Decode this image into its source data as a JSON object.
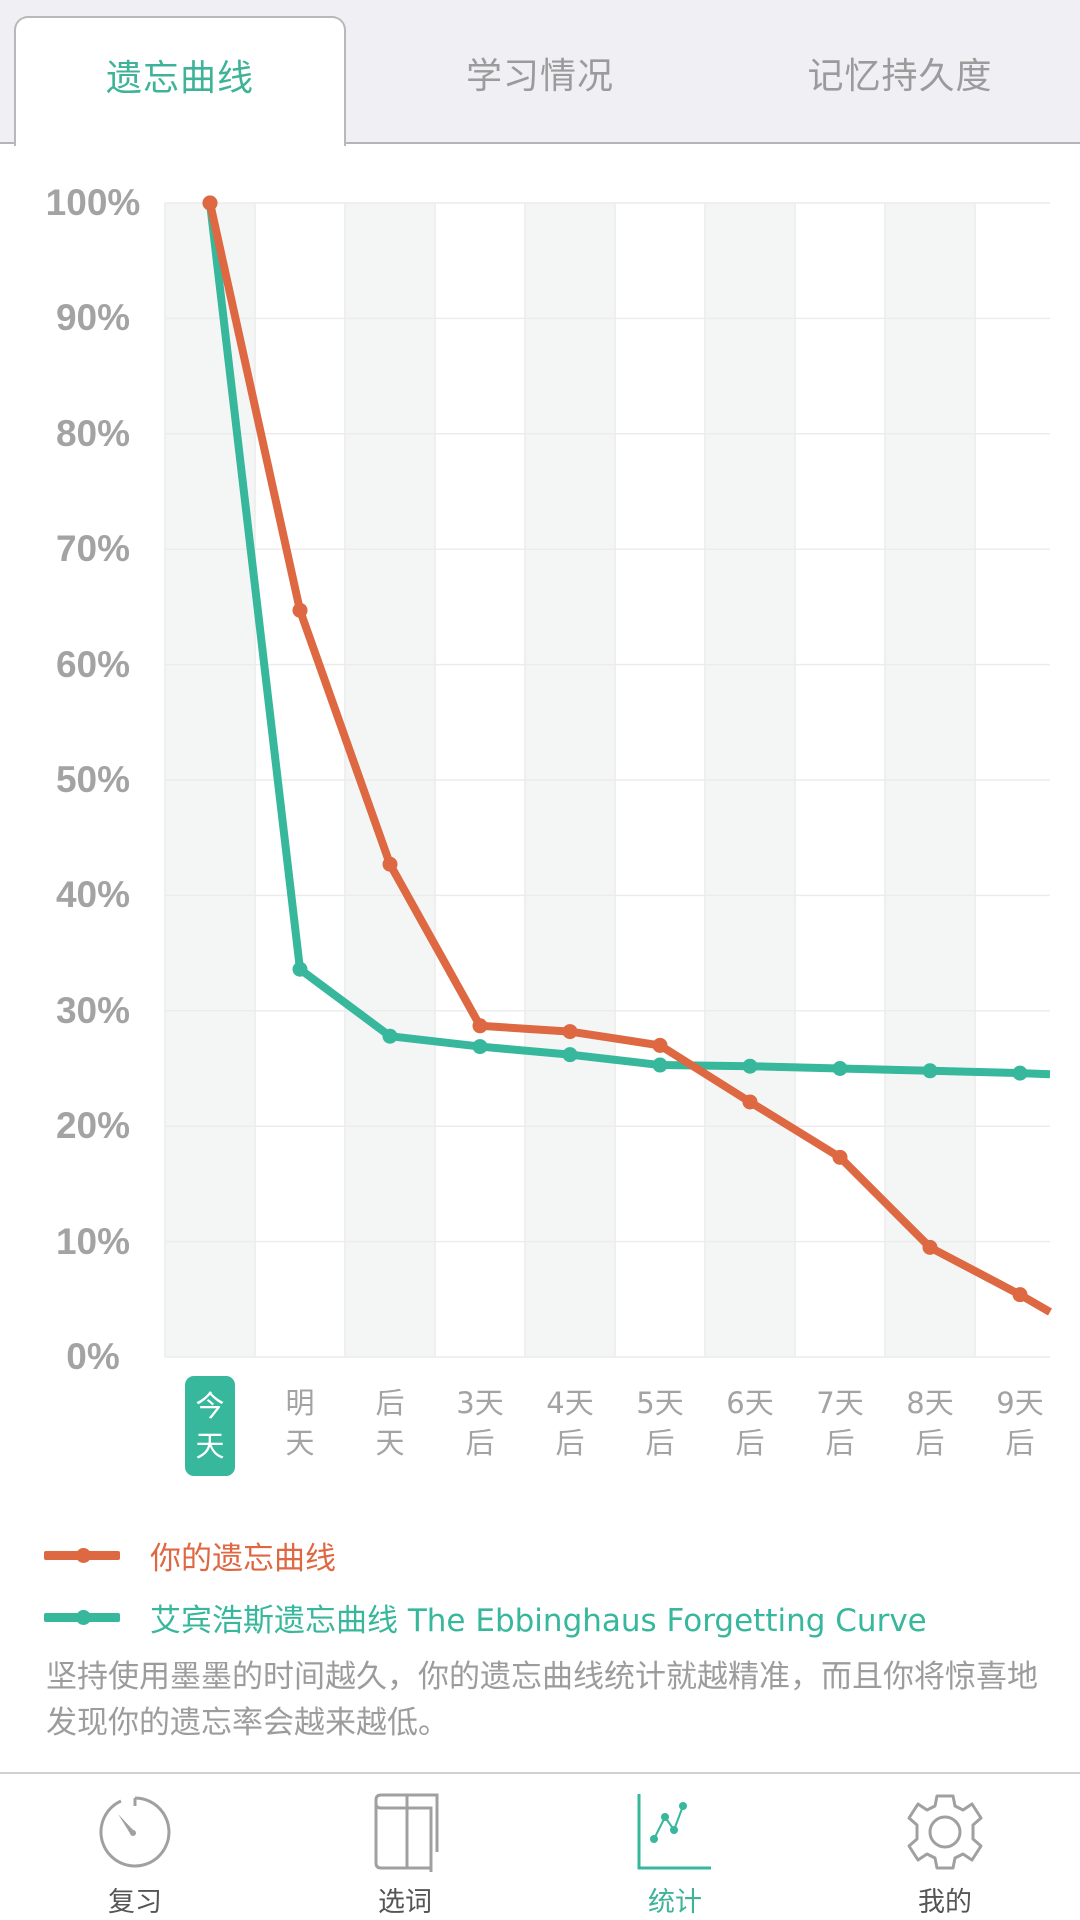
{
  "header": {
    "tabs": [
      {
        "label": "遗忘曲线",
        "active": true
      },
      {
        "label": "学习情况",
        "active": false
      },
      {
        "label": "记忆持久度",
        "active": false
      }
    ]
  },
  "colors": {
    "accent": "#37b79b",
    "orange": "#dd6841",
    "teal": "#37b79b",
    "axis_text": "#a3a3a3",
    "band": "#f4f6f6",
    "grid": "#ececec"
  },
  "chart_data": {
    "type": "line",
    "title": "遗忘曲线",
    "xlabel": "",
    "ylabel": "",
    "ylim": [
      0,
      100
    ],
    "yticks": [
      "100%",
      "90%",
      "80%",
      "70%",
      "60%",
      "50%",
      "40%",
      "30%",
      "20%",
      "10%",
      "0%"
    ],
    "categories": [
      "今天",
      "明天",
      "后天",
      "3天后",
      "4天后",
      "5天后",
      "6天后",
      "7天后",
      "8天后",
      "9天后"
    ],
    "category_lines": [
      [
        "今",
        "天"
      ],
      [
        "明",
        "天"
      ],
      [
        "后",
        "天"
      ],
      [
        "3天",
        "后"
      ],
      [
        "4天",
        "后"
      ],
      [
        "5天",
        "后"
      ],
      [
        "6天",
        "后"
      ],
      [
        "7天",
        "后"
      ],
      [
        "8天",
        "后"
      ],
      [
        "9天",
        "后"
      ]
    ],
    "highlighted_category": "今天",
    "grid": true,
    "legend_position": "bottom",
    "series": [
      {
        "name": "你的遗忘曲线",
        "color": "#dd6841",
        "values": [
          100,
          64.7,
          42.7,
          28.7,
          28.2,
          27.0,
          22.1,
          17.3,
          9.5,
          5.4
        ],
        "tail_value": 3.9
      },
      {
        "name": "艾宾浩斯遗忘曲线 The Ebbinghaus Forgetting Curve",
        "color": "#37b79b",
        "values": [
          100,
          33.6,
          27.8,
          26.9,
          26.2,
          25.3,
          25.2,
          25.0,
          24.8,
          24.6
        ],
        "tail_value": 24.5
      }
    ]
  },
  "legend": {
    "items": [
      {
        "label": "你的遗忘曲线",
        "color": "#dd6841"
      },
      {
        "label": "艾宾浩斯遗忘曲线 The Ebbinghaus Forgetting Curve",
        "color": "#37b79b"
      }
    ]
  },
  "description": "坚持使用墨墨的时间越久，你的遗忘曲线统计就越精准，而且你将惊喜地发现你的遗忘率会越来越低。",
  "tabbar": {
    "items": [
      {
        "label": "复习",
        "icon": "stopwatch-icon",
        "active": false
      },
      {
        "label": "选词",
        "icon": "book-icon",
        "active": false
      },
      {
        "label": "统计",
        "icon": "line-chart-icon",
        "active": true
      },
      {
        "label": "我的",
        "icon": "gear-icon",
        "active": false
      }
    ]
  }
}
